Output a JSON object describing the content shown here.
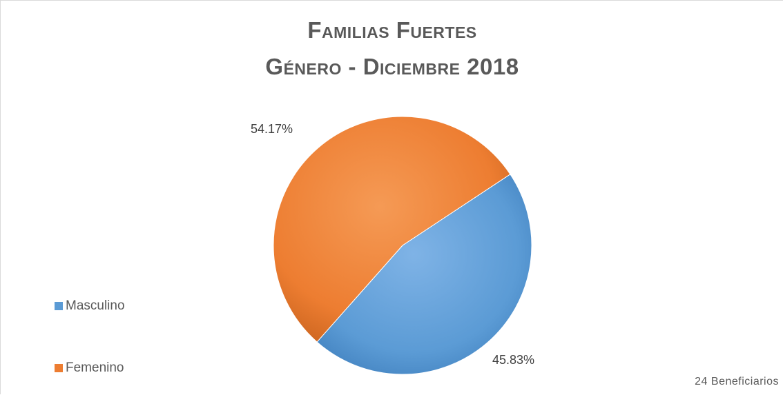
{
  "chart_data": {
    "type": "pie",
    "title": "Familias Fuertes",
    "subtitle": "Género - Diciembre 2018",
    "categories": [
      "Masculino",
      "Femenino"
    ],
    "values": [
      45.83,
      54.17
    ],
    "data_labels": [
      "45.83%",
      "54.17%"
    ],
    "colors": [
      "#5b9bd5",
      "#ed7d31"
    ],
    "legend_position": "left",
    "annotation": "24 Beneficiarios"
  }
}
